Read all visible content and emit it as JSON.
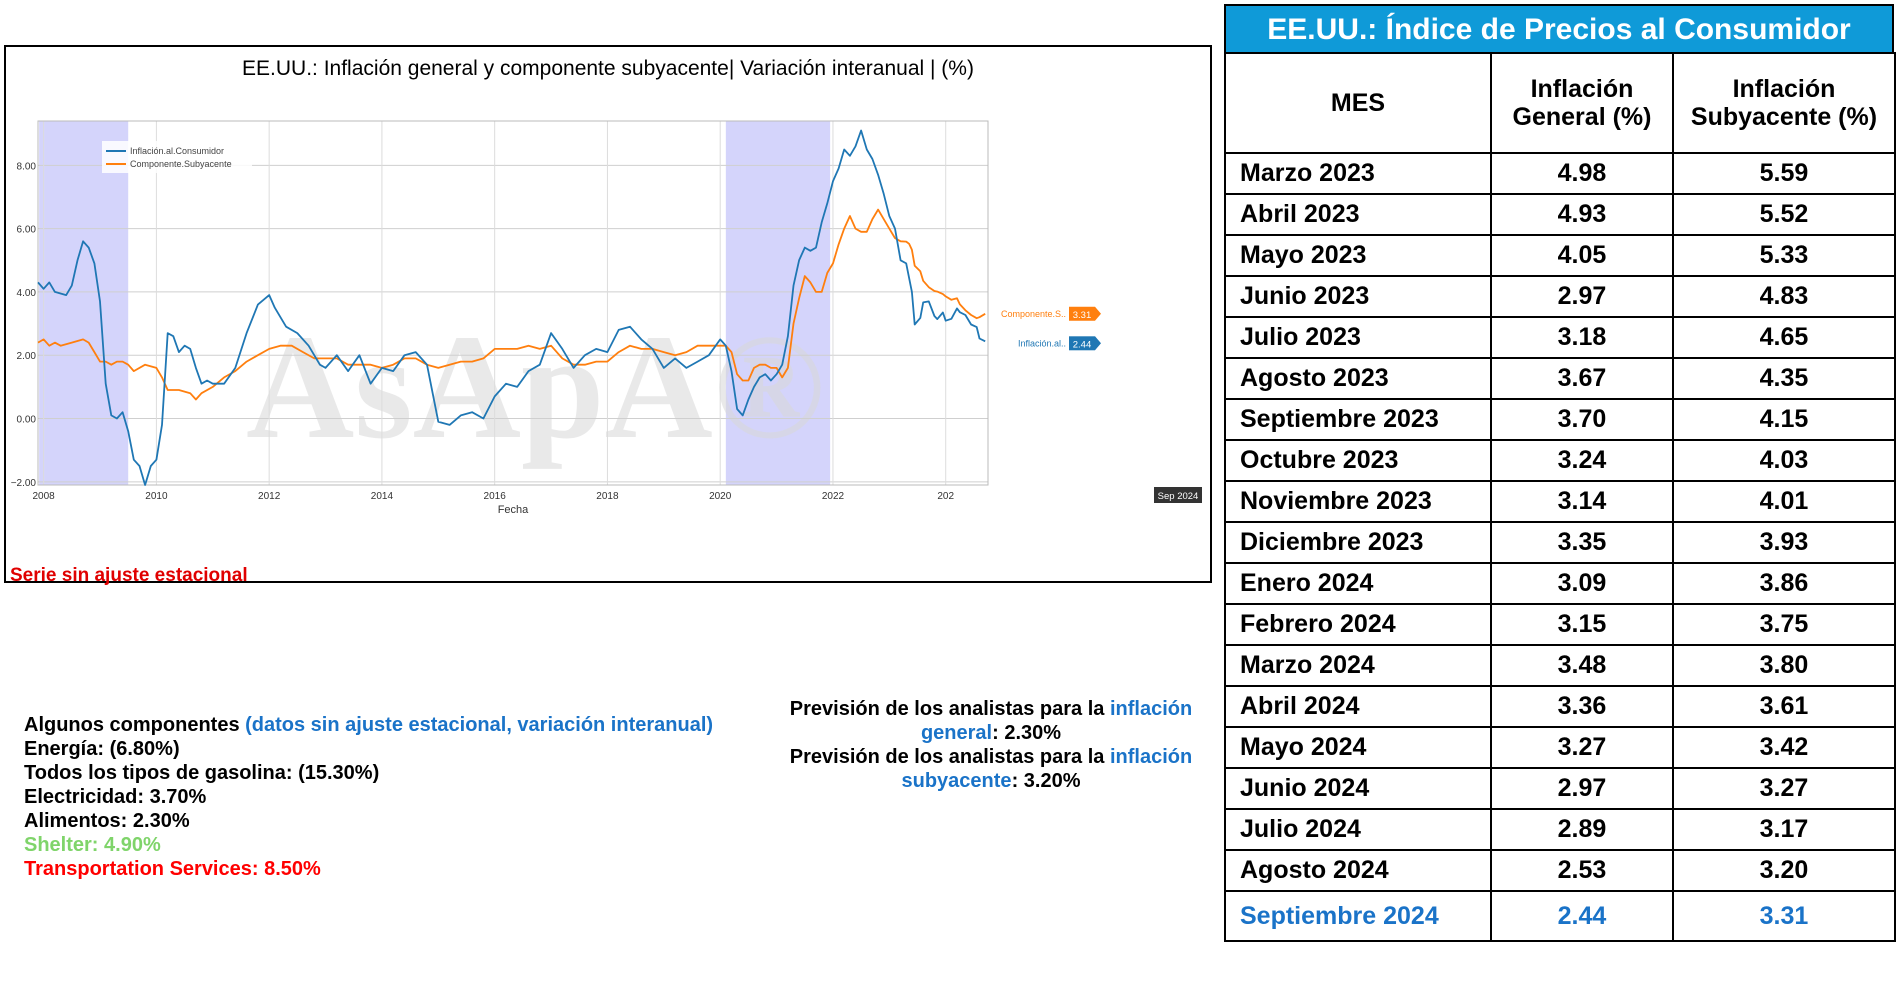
{
  "chart_panel": {
    "title": "EE.UU.: Inflación general y componente subyacente| Variación interanual | (%)",
    "note": "Serie sin ajuste estacional"
  },
  "chart_data": {
    "type": "line",
    "xlabel": "Fecha",
    "ylabel": "",
    "xlim": [
      2007.9,
      2024.75
    ],
    "ylim": [
      -2.1,
      9.4
    ],
    "x_ticks": [
      "2008",
      "2010",
      "2012",
      "2014",
      "2016",
      "2018",
      "2020",
      "2022",
      "202"
    ],
    "y_ticks": [
      "8.00",
      "6.00",
      "4.00",
      "2.00",
      "0.00",
      "−2.00"
    ],
    "grid": true,
    "legend_position": "top-left",
    "watermark": "AsApA®",
    "recession_bands": [
      [
        2007.92,
        2009.5
      ],
      [
        2020.1,
        2021.95
      ]
    ],
    "end_labels": [
      {
        "series": "Componente.Subyacente",
        "name_label": "Componente.S..",
        "value_label": "3.31",
        "value": 3.31
      },
      {
        "series": "Inflación.al.Consumidor",
        "name_label": "Inflación.al..",
        "value_label": "2.44",
        "value": 2.44
      }
    ],
    "x_hover_label": "Sep 2024",
    "series": [
      {
        "name": "Inflación.al.Consumidor",
        "color": "#1f77b4",
        "points": [
          [
            2007.9,
            4.3
          ],
          [
            2008.0,
            4.1
          ],
          [
            2008.1,
            4.3
          ],
          [
            2008.2,
            4.0
          ],
          [
            2008.4,
            3.9
          ],
          [
            2008.5,
            4.2
          ],
          [
            2008.6,
            5.0
          ],
          [
            2008.7,
            5.6
          ],
          [
            2008.8,
            5.4
          ],
          [
            2008.9,
            4.9
          ],
          [
            2009.0,
            3.7
          ],
          [
            2009.1,
            1.1
          ],
          [
            2009.2,
            0.1
          ],
          [
            2009.3,
            0.0
          ],
          [
            2009.4,
            0.2
          ],
          [
            2009.5,
            -0.4
          ],
          [
            2009.6,
            -1.3
          ],
          [
            2009.7,
            -1.5
          ],
          [
            2009.8,
            -2.1
          ],
          [
            2009.9,
            -1.5
          ],
          [
            2010.0,
            -1.3
          ],
          [
            2010.1,
            -0.2
          ],
          [
            2010.2,
            2.7
          ],
          [
            2010.3,
            2.6
          ],
          [
            2010.4,
            2.1
          ],
          [
            2010.5,
            2.3
          ],
          [
            2010.6,
            2.2
          ],
          [
            2010.7,
            1.6
          ],
          [
            2010.8,
            1.1
          ],
          [
            2010.9,
            1.2
          ],
          [
            2011.0,
            1.1
          ],
          [
            2011.2,
            1.1
          ],
          [
            2011.4,
            1.6
          ],
          [
            2011.6,
            2.7
          ],
          [
            2011.8,
            3.6
          ],
          [
            2012.0,
            3.9
          ],
          [
            2012.1,
            3.5
          ],
          [
            2012.3,
            2.9
          ],
          [
            2012.5,
            2.7
          ],
          [
            2012.7,
            2.3
          ],
          [
            2012.9,
            1.7
          ],
          [
            2013.0,
            1.6
          ],
          [
            2013.2,
            2.0
          ],
          [
            2013.4,
            1.5
          ],
          [
            2013.6,
            2.0
          ],
          [
            2013.8,
            1.1
          ],
          [
            2014.0,
            1.6
          ],
          [
            2014.2,
            1.5
          ],
          [
            2014.4,
            2.0
          ],
          [
            2014.6,
            2.1
          ],
          [
            2014.8,
            1.7
          ],
          [
            2015.0,
            -0.1
          ],
          [
            2015.2,
            -0.2
          ],
          [
            2015.4,
            0.1
          ],
          [
            2015.6,
            0.2
          ],
          [
            2015.8,
            0.0
          ],
          [
            2016.0,
            0.7
          ],
          [
            2016.2,
            1.1
          ],
          [
            2016.4,
            1.0
          ],
          [
            2016.6,
            1.5
          ],
          [
            2016.8,
            1.7
          ],
          [
            2017.0,
            2.7
          ],
          [
            2017.2,
            2.2
          ],
          [
            2017.4,
            1.6
          ],
          [
            2017.6,
            2.0
          ],
          [
            2017.8,
            2.2
          ],
          [
            2018.0,
            2.1
          ],
          [
            2018.2,
            2.8
          ],
          [
            2018.4,
            2.9
          ],
          [
            2018.6,
            2.5
          ],
          [
            2018.8,
            2.2
          ],
          [
            2019.0,
            1.6
          ],
          [
            2019.2,
            1.9
          ],
          [
            2019.4,
            1.6
          ],
          [
            2019.6,
            1.8
          ],
          [
            2019.8,
            2.0
          ],
          [
            2020.0,
            2.5
          ],
          [
            2020.1,
            2.3
          ],
          [
            2020.2,
            1.5
          ],
          [
            2020.3,
            0.3
          ],
          [
            2020.4,
            0.1
          ],
          [
            2020.5,
            0.6
          ],
          [
            2020.6,
            1.0
          ],
          [
            2020.7,
            1.3
          ],
          [
            2020.8,
            1.4
          ],
          [
            2020.9,
            1.2
          ],
          [
            2021.0,
            1.4
          ],
          [
            2021.1,
            1.7
          ],
          [
            2021.2,
            2.6
          ],
          [
            2021.3,
            4.2
          ],
          [
            2021.4,
            5.0
          ],
          [
            2021.5,
            5.4
          ],
          [
            2021.6,
            5.3
          ],
          [
            2021.7,
            5.4
          ],
          [
            2021.8,
            6.2
          ],
          [
            2021.9,
            6.8
          ],
          [
            2022.0,
            7.5
          ],
          [
            2022.1,
            7.9
          ],
          [
            2022.2,
            8.5
          ],
          [
            2022.3,
            8.3
          ],
          [
            2022.4,
            8.6
          ],
          [
            2022.5,
            9.1
          ],
          [
            2022.6,
            8.5
          ],
          [
            2022.7,
            8.2
          ],
          [
            2022.8,
            7.7
          ],
          [
            2022.9,
            7.1
          ],
          [
            2023.0,
            6.4
          ],
          [
            2023.1,
            6.0
          ],
          [
            2023.2,
            5.0
          ],
          [
            2023.3,
            4.9
          ],
          [
            2023.4,
            4.0
          ],
          [
            2023.45,
            2.97
          ],
          [
            2023.55,
            3.18
          ],
          [
            2023.6,
            3.67
          ],
          [
            2023.7,
            3.7
          ],
          [
            2023.8,
            3.24
          ],
          [
            2023.85,
            3.14
          ],
          [
            2023.95,
            3.35
          ],
          [
            2024.0,
            3.09
          ],
          [
            2024.1,
            3.15
          ],
          [
            2024.2,
            3.48
          ],
          [
            2024.25,
            3.36
          ],
          [
            2024.35,
            3.27
          ],
          [
            2024.45,
            2.97
          ],
          [
            2024.55,
            2.89
          ],
          [
            2024.6,
            2.53
          ],
          [
            2024.7,
            2.44
          ]
        ]
      },
      {
        "name": "Componente.Subyacente",
        "color": "#ff7f0e",
        "points": [
          [
            2007.9,
            2.4
          ],
          [
            2008.0,
            2.5
          ],
          [
            2008.1,
            2.3
          ],
          [
            2008.2,
            2.4
          ],
          [
            2008.3,
            2.3
          ],
          [
            2008.5,
            2.4
          ],
          [
            2008.7,
            2.5
          ],
          [
            2008.8,
            2.4
          ],
          [
            2008.9,
            2.1
          ],
          [
            2009.0,
            1.8
          ],
          [
            2009.1,
            1.8
          ],
          [
            2009.2,
            1.7
          ],
          [
            2009.3,
            1.8
          ],
          [
            2009.4,
            1.8
          ],
          [
            2009.5,
            1.7
          ],
          [
            2009.6,
            1.5
          ],
          [
            2009.8,
            1.7
          ],
          [
            2010.0,
            1.6
          ],
          [
            2010.1,
            1.3
          ],
          [
            2010.2,
            0.9
          ],
          [
            2010.4,
            0.9
          ],
          [
            2010.6,
            0.8
          ],
          [
            2010.7,
            0.6
          ],
          [
            2010.8,
            0.8
          ],
          [
            2011.0,
            1.0
          ],
          [
            2011.2,
            1.3
          ],
          [
            2011.4,
            1.5
          ],
          [
            2011.6,
            1.8
          ],
          [
            2011.8,
            2.0
          ],
          [
            2012.0,
            2.2
          ],
          [
            2012.2,
            2.3
          ],
          [
            2012.4,
            2.3
          ],
          [
            2012.6,
            2.1
          ],
          [
            2012.8,
            1.9
          ],
          [
            2013.0,
            1.9
          ],
          [
            2013.2,
            1.9
          ],
          [
            2013.4,
            1.7
          ],
          [
            2013.6,
            1.7
          ],
          [
            2013.8,
            1.7
          ],
          [
            2014.0,
            1.6
          ],
          [
            2014.2,
            1.7
          ],
          [
            2014.4,
            1.9
          ],
          [
            2014.6,
            1.9
          ],
          [
            2014.8,
            1.7
          ],
          [
            2015.0,
            1.6
          ],
          [
            2015.2,
            1.7
          ],
          [
            2015.4,
            1.8
          ],
          [
            2015.6,
            1.8
          ],
          [
            2015.8,
            1.9
          ],
          [
            2016.0,
            2.2
          ],
          [
            2016.2,
            2.2
          ],
          [
            2016.4,
            2.2
          ],
          [
            2016.6,
            2.3
          ],
          [
            2016.8,
            2.2
          ],
          [
            2017.0,
            2.3
          ],
          [
            2017.2,
            1.9
          ],
          [
            2017.4,
            1.7
          ],
          [
            2017.6,
            1.7
          ],
          [
            2017.8,
            1.8
          ],
          [
            2018.0,
            1.8
          ],
          [
            2018.2,
            2.1
          ],
          [
            2018.4,
            2.3
          ],
          [
            2018.6,
            2.2
          ],
          [
            2018.8,
            2.2
          ],
          [
            2019.0,
            2.1
          ],
          [
            2019.2,
            2.0
          ],
          [
            2019.4,
            2.1
          ],
          [
            2019.6,
            2.3
          ],
          [
            2019.8,
            2.3
          ],
          [
            2020.0,
            2.3
          ],
          [
            2020.1,
            2.3
          ],
          [
            2020.2,
            2.1
          ],
          [
            2020.3,
            1.4
          ],
          [
            2020.4,
            1.2
          ],
          [
            2020.5,
            1.2
          ],
          [
            2020.6,
            1.6
          ],
          [
            2020.7,
            1.7
          ],
          [
            2020.8,
            1.7
          ],
          [
            2020.9,
            1.6
          ],
          [
            2021.0,
            1.6
          ],
          [
            2021.1,
            1.3
          ],
          [
            2021.2,
            1.6
          ],
          [
            2021.3,
            3.0
          ],
          [
            2021.4,
            3.8
          ],
          [
            2021.5,
            4.5
          ],
          [
            2021.6,
            4.3
          ],
          [
            2021.7,
            4.0
          ],
          [
            2021.8,
            4.0
          ],
          [
            2021.9,
            4.6
          ],
          [
            2022.0,
            4.9
          ],
          [
            2022.1,
            5.5
          ],
          [
            2022.2,
            6.0
          ],
          [
            2022.3,
            6.4
          ],
          [
            2022.4,
            6.0
          ],
          [
            2022.5,
            5.9
          ],
          [
            2022.6,
            5.9
          ],
          [
            2022.7,
            6.3
          ],
          [
            2022.8,
            6.6
          ],
          [
            2022.9,
            6.3
          ],
          [
            2023.0,
            6.0
          ],
          [
            2023.1,
            5.7
          ],
          [
            2023.2,
            5.6
          ],
          [
            2023.3,
            5.59
          ],
          [
            2023.35,
            5.52
          ],
          [
            2023.4,
            5.33
          ],
          [
            2023.45,
            4.83
          ],
          [
            2023.55,
            4.65
          ],
          [
            2023.6,
            4.35
          ],
          [
            2023.7,
            4.15
          ],
          [
            2023.8,
            4.03
          ],
          [
            2023.85,
            4.01
          ],
          [
            2023.95,
            3.93
          ],
          [
            2024.0,
            3.86
          ],
          [
            2024.1,
            3.75
          ],
          [
            2024.2,
            3.8
          ],
          [
            2024.25,
            3.61
          ],
          [
            2024.35,
            3.42
          ],
          [
            2024.45,
            3.27
          ],
          [
            2024.55,
            3.17
          ],
          [
            2024.6,
            3.2
          ],
          [
            2024.7,
            3.31
          ]
        ]
      }
    ]
  },
  "components": {
    "heading_bold": "Algunos componentes ",
    "heading_note": "(datos sin ajuste estacional, variación interanual)",
    "items": [
      "Energía: (6.80%)",
      "Todos los tipos de gasolina: (15.30%)",
      "Electricidad: 3.70%",
      "Alimentos: 2.30%"
    ],
    "shelter": "Shelter: 4.90%",
    "transport": "Transportation Services: 8.50%",
    "colors": {
      "note": "#1a73c8",
      "shelter": "#7fd46a",
      "transport": "#ff0000"
    }
  },
  "forecast": {
    "prefix": "Previsión de los analistas para la ",
    "general_word1": "inflación",
    "general_word2": "general",
    "general_value": ": 2.30%",
    "sub_word1": "inflación",
    "sub_word2": "subyacente",
    "sub_value": ": 3.20%"
  },
  "table": {
    "title": "EE.UU.: Índice de Precios al Consumidor",
    "title_bg": "#0f9ad8",
    "headers": [
      "MES",
      "Inflación General (%)",
      "Inflación Subyacente (%)"
    ],
    "rows": [
      [
        "Marzo 2023",
        "4.98",
        "5.59"
      ],
      [
        "Abril 2023",
        "4.93",
        "5.52"
      ],
      [
        "Mayo 2023",
        "4.05",
        "5.33"
      ],
      [
        "Junio 2023",
        "2.97",
        "4.83"
      ],
      [
        "Julio 2023",
        "3.18",
        "4.65"
      ],
      [
        "Agosto 2023",
        "3.67",
        "4.35"
      ],
      [
        "Septiembre 2023",
        "3.70",
        "4.15"
      ],
      [
        "Octubre 2023",
        "3.24",
        "4.03"
      ],
      [
        "Noviembre 2023",
        "3.14",
        "4.01"
      ],
      [
        "Diciembre 2023",
        "3.35",
        "3.93"
      ],
      [
        "Enero 2024",
        "3.09",
        "3.86"
      ],
      [
        "Febrero 2024",
        "3.15",
        "3.75"
      ],
      [
        "Marzo 2024",
        "3.48",
        "3.80"
      ],
      [
        "Abril 2024",
        "3.36",
        "3.61"
      ],
      [
        "Mayo 2024",
        "3.27",
        "3.42"
      ],
      [
        "Junio 2024",
        "2.97",
        "3.27"
      ],
      [
        "Julio 2024",
        "2.89",
        "3.17"
      ],
      [
        "Agosto 2024",
        "2.53",
        "3.20"
      ]
    ],
    "highlight_row": [
      "Septiembre 2024",
      "2.44",
      "3.31"
    ],
    "highlight_color": "#1a73c8"
  }
}
